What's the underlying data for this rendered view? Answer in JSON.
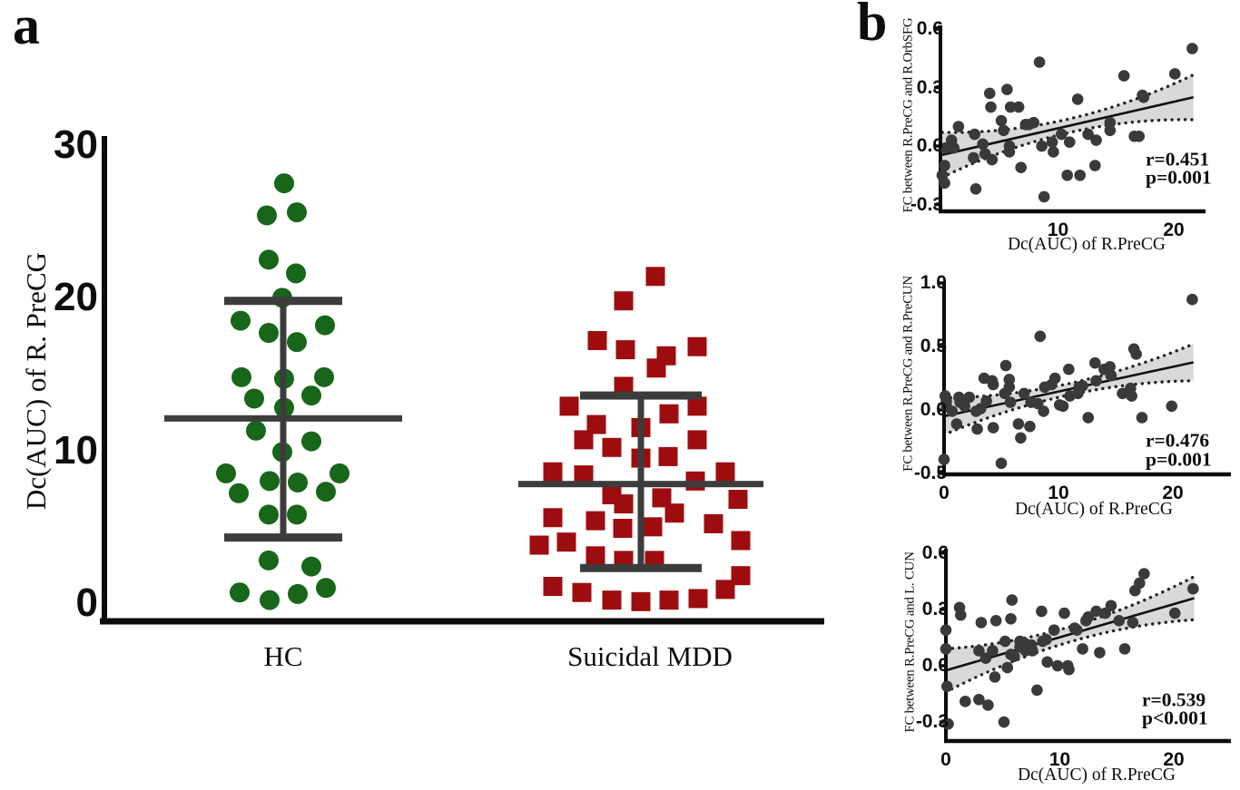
{
  "figure": {
    "panel_a_label": "a",
    "panel_b_label": "b",
    "colors": {
      "hc_green": "#176619",
      "mdd_red": "#9d0d0f",
      "errorbar_gray": "#3c3c3c",
      "point_gray": "#3a3a3a",
      "band_gray": "#d9d9d9",
      "dotted_gray": "#222222",
      "axis_black": "#0b0b0b",
      "line_black": "#111111"
    }
  },
  "chart_data": [
    {
      "id": "group-dotplot",
      "type": "scatter",
      "ylabel": "Dc(AUC) of R. PreCG",
      "ylim": [
        0,
        30
      ],
      "ytick_vals": [
        0,
        10,
        20,
        30
      ],
      "ytick_labels": [
        "0",
        "10",
        "20",
        "30"
      ],
      "grid": false,
      "points_format": "jitter_offset_px,value",
      "groups": [
        {
          "label": "HC",
          "marker": "circle",
          "color": "#176619",
          "mean": 12.1,
          "err_low": 4.3,
          "err_high": 19.8,
          "points": [
            [
              1,
              27.5
            ],
            [
              -18,
              25.4
            ],
            [
              15,
              25.6
            ],
            [
              -16,
              22.5
            ],
            [
              14,
              21.6
            ],
            [
              -1,
              20
            ],
            [
              -47,
              18.5
            ],
            [
              46,
              18.2
            ],
            [
              -16,
              17.7
            ],
            [
              15,
              17.1
            ],
            [
              -46,
              14.8
            ],
            [
              1,
              14.7
            ],
            [
              45,
              14.8
            ],
            [
              -32,
              13.4
            ],
            [
              31,
              13.6
            ],
            [
              1,
              12.8
            ],
            [
              -30,
              11.3
            ],
            [
              31,
              10.6
            ],
            [
              -1,
              9.9
            ],
            [
              -63,
              8.5
            ],
            [
              62,
              8.5
            ],
            [
              -15,
              8
            ],
            [
              16,
              7.9
            ],
            [
              47,
              7.3
            ],
            [
              -49,
              7.2
            ],
            [
              -16,
              5.8
            ],
            [
              15,
              5.8
            ],
            [
              -16,
              2.8
            ],
            [
              31,
              2.4
            ],
            [
              47,
              1
            ],
            [
              -48,
              0.7
            ],
            [
              16,
              0.6
            ],
            [
              -15,
              0.2
            ]
          ]
        },
        {
          "label": "Suicidal MDD",
          "marker": "square",
          "color": "#9d0d0f",
          "mean": 7.8,
          "err_low": 2.3,
          "err_high": 13.6,
          "points": [
            [
              16,
              21.4
            ],
            [
              -19,
              19.8
            ],
            [
              -48,
              17.2
            ],
            [
              -17,
              16.6
            ],
            [
              62,
              16.8
            ],
            [
              28,
              16.2
            ],
            [
              17,
              15.4
            ],
            [
              -19,
              14.2
            ],
            [
              -79,
              12.9
            ],
            [
              62,
              12.9
            ],
            [
              31,
              12.4
            ],
            [
              -49,
              11.7
            ],
            [
              0,
              11.5
            ],
            [
              -63,
              10.7
            ],
            [
              62,
              10.7
            ],
            [
              -32,
              10.2
            ],
            [
              30,
              9.6
            ],
            [
              0,
              9.5
            ],
            [
              -97,
              8.6
            ],
            [
              93,
              8.6
            ],
            [
              -63,
              8.4
            ],
            [
              60,
              8
            ],
            [
              -32,
              7.1
            ],
            [
              23,
              6.9
            ],
            [
              107,
              6.8
            ],
            [
              -19,
              6.5
            ],
            [
              37,
              5.9
            ],
            [
              -97,
              5.6
            ],
            [
              -50,
              5.4
            ],
            [
              80,
              5.2
            ],
            [
              13,
              5
            ],
            [
              -20,
              4.9
            ],
            [
              110,
              4.1
            ],
            [
              -82,
              4
            ],
            [
              -112,
              3.8
            ],
            [
              -50,
              3.1
            ],
            [
              -19,
              2.8
            ],
            [
              15,
              2.8
            ],
            [
              110,
              1.8
            ],
            [
              -97,
              1.1
            ],
            [
              93,
              0.9
            ],
            [
              -65,
              0.7
            ],
            [
              63,
              0.3
            ],
            [
              -32,
              0.2
            ],
            [
              31,
              0.2
            ],
            [
              0,
              0.1
            ]
          ]
        }
      ]
    },
    {
      "id": "corr-r-orbsfg",
      "type": "scatter",
      "xlabel": "Dc(AUC) of R.PreCG",
      "ylabel": "FC between R.PreCG and R.OrbSFG",
      "xlim": [
        0,
        23
      ],
      "ylim": [
        -0.335,
        0.62
      ],
      "xtick_vals": [
        10,
        20
      ],
      "xtick_labels": [
        "10",
        "20"
      ],
      "ytick_vals": [
        -0.3,
        0,
        0.3,
        0.6
      ],
      "ytick_labels": [
        "-0.3",
        "0.0",
        "0.3",
        "0.6"
      ],
      "r_label": "r=0.451",
      "p_label": "p=0.001",
      "regression": {
        "x0": 0,
        "y0": -0.045,
        "x1": 21.7,
        "y1": 0.25
      },
      "band": {
        "mid_half": 0.035,
        "end_half": 0.115
      },
      "points": [
        [
          0.3,
          -0.01
        ],
        [
          0.2,
          -0.1
        ],
        [
          0,
          -0.15
        ],
        [
          0.2,
          -0.19
        ],
        [
          0.8,
          0.03
        ],
        [
          1,
          -0.01
        ],
        [
          1.4,
          0.1
        ],
        [
          2.8,
          0.06
        ],
        [
          2.7,
          -0.06
        ],
        [
          2.9,
          -0.22
        ],
        [
          3.5,
          0.01
        ],
        [
          3.7,
          -0.04
        ],
        [
          4.1,
          0.27
        ],
        [
          4.2,
          0.2
        ],
        [
          4.3,
          -0.07
        ],
        [
          5.1,
          0.13
        ],
        [
          5.3,
          0.08
        ],
        [
          5.6,
          0.29
        ],
        [
          5.9,
          0.2
        ],
        [
          5.8,
          0
        ],
        [
          5.8,
          -0.03
        ],
        [
          6.6,
          0.2
        ],
        [
          6.8,
          -0.11
        ],
        [
          7.2,
          0.11
        ],
        [
          7.5,
          0.11
        ],
        [
          7.9,
          0.12
        ],
        [
          8.4,
          0.43
        ],
        [
          8.6,
          0
        ],
        [
          8.8,
          -0.26
        ],
        [
          9.5,
          0.02
        ],
        [
          9.6,
          -0.03
        ],
        [
          10.3,
          0.06
        ],
        [
          10.8,
          -0.15
        ],
        [
          11,
          0.02
        ],
        [
          11.7,
          0.24
        ],
        [
          11.9,
          -0.15
        ],
        [
          12.6,
          0.06
        ],
        [
          13.2,
          -0.1
        ],
        [
          13.3,
          0.03
        ],
        [
          14.5,
          0.08
        ],
        [
          14.5,
          0.12
        ],
        [
          15.7,
          0.36
        ],
        [
          16.6,
          0.05
        ],
        [
          17,
          0.05
        ],
        [
          17.3,
          0.26
        ],
        [
          17.4,
          0.25
        ],
        [
          20.1,
          0.37
        ],
        [
          21.6,
          0.5
        ]
      ]
    },
    {
      "id": "corr-r-precun",
      "type": "scatter",
      "xlabel": "Dc(AUC) of R.PreCG",
      "ylabel": "FC between R.PreCG and R.PreCUN",
      "xlim": [
        0,
        23
      ],
      "ylim": [
        -0.5,
        1.0
      ],
      "xtick_vals": [
        0,
        10,
        20
      ],
      "xtick_labels": [
        "0",
        "10",
        "20"
      ],
      "ytick_vals": [
        -0.5,
        0,
        0.5,
        1.0
      ],
      "ytick_labels": [
        "-0.5",
        "0.0",
        "0.5",
        "1.0"
      ],
      "r_label": "r=0.476",
      "p_label": "p=0.001",
      "regression": {
        "x0": 0,
        "y0": -0.05,
        "x1": 21.8,
        "y1": 0.375
      },
      "band": {
        "mid_half": 0.045,
        "end_half": 0.145
      },
      "points": [
        [
          0.2,
          0.07
        ],
        [
          0.2,
          0.03
        ],
        [
          0.1,
          0.11
        ],
        [
          0,
          -0.39
        ],
        [
          0.7,
          -0.01
        ],
        [
          1.1,
          -0.11
        ],
        [
          1.3,
          0.1
        ],
        [
          1.4,
          0.06
        ],
        [
          1.8,
          0.03
        ],
        [
          2.2,
          0.1
        ],
        [
          2.8,
          -0.01
        ],
        [
          2.9,
          -0.15
        ],
        [
          3.2,
          0.01
        ],
        [
          3.5,
          0.25
        ],
        [
          3.7,
          0.07
        ],
        [
          4.2,
          0.23
        ],
        [
          4.3,
          0.2
        ],
        [
          4.3,
          -0.14
        ],
        [
          5,
          -0.42
        ],
        [
          5.3,
          0.13
        ],
        [
          5.4,
          0.35
        ],
        [
          5.7,
          0.24
        ],
        [
          5.7,
          0.18
        ],
        [
          5.8,
          0.06
        ],
        [
          6.5,
          -0.11
        ],
        [
          6.7,
          -0.22
        ],
        [
          7,
          0.13
        ],
        [
          7.5,
          -0.13
        ],
        [
          7.6,
          0.06
        ],
        [
          8.2,
          0.05
        ],
        [
          8.4,
          0.58
        ],
        [
          8.7,
          -0.01
        ],
        [
          8.8,
          0.18
        ],
        [
          9.4,
          0.2
        ],
        [
          9.7,
          0.25
        ],
        [
          10.1,
          0.04
        ],
        [
          10.4,
          0.03
        ],
        [
          10.9,
          0.32
        ],
        [
          11,
          0.11
        ],
        [
          11.7,
          0.13
        ],
        [
          11.8,
          0.18
        ],
        [
          12.1,
          0.19
        ],
        [
          12.6,
          -0.06
        ],
        [
          13.2,
          0.37
        ],
        [
          13.3,
          0.23
        ],
        [
          14,
          0.32
        ],
        [
          14.5,
          0.34
        ],
        [
          14.6,
          0.27
        ],
        [
          15.6,
          0.13
        ],
        [
          16.3,
          0.17
        ],
        [
          16.4,
          0.11
        ],
        [
          16.6,
          0.48
        ],
        [
          16.8,
          0.44
        ],
        [
          17.3,
          -0.06
        ],
        [
          19.9,
          0.03
        ],
        [
          21.7,
          0.87
        ]
      ]
    },
    {
      "id": "corr-l-cun",
      "type": "scatter",
      "xlabel": "Dc(AUC) of R.PreCG",
      "ylabel": "FC between R.PreCG and L. CUN",
      "xlim": [
        0,
        23
      ],
      "ylim": [
        -0.4,
        0.62
      ],
      "xtick_vals": [
        0,
        10,
        20
      ],
      "xtick_labels": [
        "0",
        "10",
        "20"
      ],
      "ytick_vals": [
        -0.3,
        0,
        0.3,
        0.6
      ],
      "ytick_labels": [
        "-0.3",
        "0.0",
        "0.3",
        "0.6"
      ],
      "r_label": "r=0.539",
      "p_label": "p<0.001",
      "regression": {
        "x0": 0,
        "y0": -0.025,
        "x1": 21.8,
        "y1": 0.36
      },
      "band": {
        "mid_half": 0.04,
        "end_half": 0.115
      },
      "points": [
        [
          0,
          0.19
        ],
        [
          0,
          0.09
        ],
        [
          0.1,
          -0.11
        ],
        [
          0.2,
          -0.31
        ],
        [
          1.2,
          0.31
        ],
        [
          1.3,
          0.27
        ],
        [
          1.7,
          -0.19
        ],
        [
          2.9,
          -0.18
        ],
        [
          2.9,
          0.08
        ],
        [
          3.1,
          0.23
        ],
        [
          3.5,
          0.04
        ],
        [
          3.7,
          -0.21
        ],
        [
          4.1,
          0.08
        ],
        [
          4.3,
          -0.06
        ],
        [
          4.4,
          0.24
        ],
        [
          5.1,
          -0.3
        ],
        [
          5.2,
          0.13
        ],
        [
          5.4,
          -0.01
        ],
        [
          5.7,
          0.06
        ],
        [
          5.7,
          0.25
        ],
        [
          5.8,
          0.35
        ],
        [
          6,
          0.05
        ],
        [
          6.5,
          0.13
        ],
        [
          6.5,
          0.1
        ],
        [
          6.9,
          0.12
        ],
        [
          7,
          0.08
        ],
        [
          7.2,
          0.1
        ],
        [
          7.5,
          0.11
        ],
        [
          7.6,
          0.08
        ],
        [
          8,
          -0.13
        ],
        [
          8.4,
          0.29
        ],
        [
          8.5,
          0.13
        ],
        [
          8.8,
          0.14
        ],
        [
          8.9,
          0.02
        ],
        [
          9.5,
          0.19
        ],
        [
          9.8,
          0
        ],
        [
          10.4,
          0.28
        ],
        [
          10.7,
          0
        ],
        [
          10.8,
          -0.02
        ],
        [
          11.3,
          0.2
        ],
        [
          11.5,
          0.19
        ],
        [
          12,
          0.09
        ],
        [
          12.3,
          0.24
        ],
        [
          12.5,
          0.26
        ],
        [
          13.2,
          0.29
        ],
        [
          13.5,
          0.07
        ],
        [
          14,
          0.28
        ],
        [
          14.5,
          0.32
        ],
        [
          15.2,
          0.24
        ],
        [
          15.7,
          0.09
        ],
        [
          16.4,
          0.23
        ],
        [
          16.6,
          0.4
        ],
        [
          17,
          0.44
        ],
        [
          17.4,
          0.49
        ],
        [
          20.1,
          0.28
        ],
        [
          21.7,
          0.41
        ]
      ]
    }
  ]
}
